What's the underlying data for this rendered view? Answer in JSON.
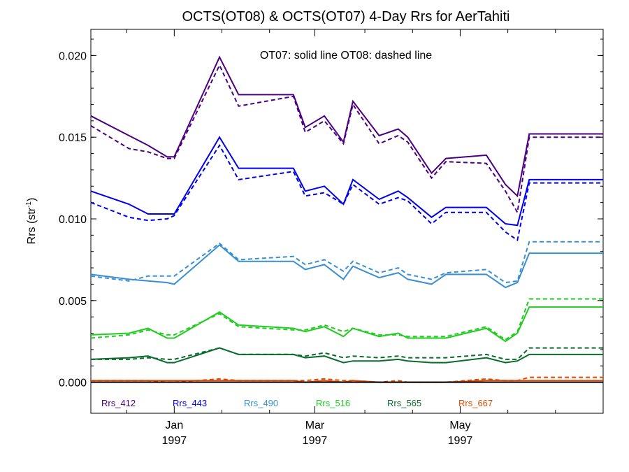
{
  "chart_data": {
    "type": "line",
    "title": "OCTS(OT08) & OCTS(OT07) 4-Day Rrs for AerTahiti",
    "subtitle": "OT07: solid line   OT08: dashed line",
    "ylabel_main": "Rrs (str",
    "ylabel_sup": "-1",
    "ylabel_close": ")",
    "xlabel": "",
    "ylim": [
      -0.0019,
      0.0216
    ],
    "y_ticks": [
      0.0,
      0.005,
      0.01,
      0.015,
      0.02
    ],
    "y_tick_labels": [
      "0.000",
      "0.005",
      "0.010",
      "0.015",
      "0.020"
    ],
    "x_ticks": [
      {
        "month": "Jan",
        "year": "1997",
        "day": 0
      },
      {
        "month": "Mar",
        "year": "1997",
        "day": 59
      },
      {
        "month": "May",
        "year": "1997",
        "day": 120
      }
    ],
    "xlim_days": [
      -35,
      180
    ],
    "grid": false,
    "legend_placement": "bottom, inside plot",
    "x": [
      -35,
      -19,
      -11,
      -3,
      0,
      19,
      27,
      50,
      55,
      63,
      71,
      75,
      86,
      94,
      98,
      108,
      114,
      131,
      139,
      144,
      149,
      154,
      162,
      180
    ],
    "series": [
      {
        "name": "Rrs_412",
        "color": "#4b0082",
        "ot07": [
          0.0163,
          0.0151,
          0.0145,
          0.0138,
          0.0138,
          0.0199,
          0.0176,
          0.0176,
          0.0156,
          0.0163,
          0.0147,
          0.0172,
          0.0151,
          0.0155,
          0.015,
          0.0128,
          0.0137,
          0.0139,
          0.0121,
          0.0114,
          0.0152,
          0.0152,
          0.0152,
          0.0152
        ],
        "ot08": [
          0.0157,
          0.0143,
          0.0141,
          0.0137,
          0.0137,
          0.0194,
          0.0169,
          0.0175,
          0.0153,
          0.016,
          0.0146,
          0.017,
          0.0146,
          0.0151,
          0.0147,
          0.0125,
          0.0135,
          0.0134,
          0.0117,
          0.0104,
          0.015,
          0.015,
          0.015,
          0.015
        ]
      },
      {
        "name": "Rrs_443",
        "color": "#0000ee",
        "ot07": [
          0.0117,
          0.0109,
          0.0103,
          0.0103,
          0.0103,
          0.015,
          0.0131,
          0.0131,
          0.0117,
          0.012,
          0.0109,
          0.0124,
          0.0112,
          0.0117,
          0.0113,
          0.0101,
          0.0107,
          0.0107,
          0.0097,
          0.0096,
          0.0124,
          0.0124,
          0.0124,
          0.0124
        ],
        "ot08": [
          0.011,
          0.0101,
          0.0099,
          0.01,
          0.0102,
          0.0145,
          0.0124,
          0.0129,
          0.0114,
          0.0116,
          0.0109,
          0.0121,
          0.0109,
          0.0113,
          0.0111,
          0.0097,
          0.0104,
          0.0104,
          0.0092,
          0.0087,
          0.0122,
          0.0122,
          0.0122,
          0.0122
        ]
      },
      {
        "name": "Rrs_490",
        "color": "#3a8fd0",
        "ot07": [
          0.0066,
          0.0063,
          0.0062,
          0.0061,
          0.006,
          0.0084,
          0.0074,
          0.0074,
          0.0069,
          0.0072,
          0.0063,
          0.0071,
          0.0064,
          0.0067,
          0.0063,
          0.006,
          0.0066,
          0.0066,
          0.0058,
          0.0061,
          0.0079,
          0.0079,
          0.0079,
          0.0079
        ],
        "ot08": [
          0.0065,
          0.0062,
          0.0065,
          0.0065,
          0.0065,
          0.0085,
          0.0075,
          0.0077,
          0.0072,
          0.0075,
          0.0068,
          0.0074,
          0.0067,
          0.007,
          0.0066,
          0.0063,
          0.0067,
          0.0069,
          0.0061,
          0.0062,
          0.0086,
          0.0086,
          0.0086,
          0.0086
        ]
      },
      {
        "name": "Rrs_516",
        "color": "#22cc22",
        "ot07": [
          0.0029,
          0.003,
          0.0033,
          0.0027,
          0.0027,
          0.0043,
          0.0035,
          0.0033,
          0.0031,
          0.0034,
          0.0028,
          0.0033,
          0.0028,
          0.003,
          0.0027,
          0.0027,
          0.0027,
          0.0033,
          0.0025,
          0.003,
          0.0046,
          0.0046,
          0.0046,
          0.0046
        ],
        "ot08": [
          0.0027,
          0.0029,
          0.0032,
          0.0029,
          0.0029,
          0.0042,
          0.0034,
          0.0032,
          0.0032,
          0.0035,
          0.0031,
          0.0033,
          0.0029,
          0.0029,
          0.0028,
          0.0028,
          0.0028,
          0.0034,
          0.0026,
          0.0031,
          0.0051,
          0.0051,
          0.0051,
          0.0051
        ]
      },
      {
        "name": "Rrs_565",
        "color": "#0b6b2c",
        "ot07": [
          0.0014,
          0.0015,
          0.0016,
          0.0012,
          0.0012,
          0.0021,
          0.0017,
          0.0017,
          0.0015,
          0.0016,
          0.0012,
          0.0013,
          0.0013,
          0.0014,
          0.0013,
          0.0012,
          0.0012,
          0.0015,
          0.0012,
          0.0013,
          0.0017,
          0.0017,
          0.0017,
          0.0017
        ],
        "ot08": [
          0.0014,
          0.0014,
          0.0015,
          0.0014,
          0.0014,
          0.0021,
          0.0017,
          0.0017,
          0.0016,
          0.0018,
          0.0015,
          0.0016,
          0.0015,
          0.0016,
          0.0015,
          0.0015,
          0.0015,
          0.0017,
          0.0014,
          0.0014,
          0.0021,
          0.0021,
          0.0021,
          0.0021
        ]
      },
      {
        "name": "Rrs_667",
        "color": "#e04a00",
        "ot07": [
          0.0001,
          0.0001,
          0.0001,
          0.0001,
          0.0001,
          0.0001,
          0.0001,
          0.0001,
          0.0,
          0.0001,
          0.0,
          0.0001,
          0.0,
          0.0,
          0.0,
          0.0,
          0.0,
          0.0001,
          0.0001,
          0.0001,
          0.0001,
          0.0001,
          0.0001,
          0.0001
        ],
        "ot08": [
          0.0001,
          0.0001,
          0.0001,
          0.0,
          0.0,
          0.0002,
          0.0001,
          0.0001,
          0.0001,
          0.0002,
          0.0001,
          0.0001,
          0.0,
          0.0001,
          0.0,
          0.0,
          0.0,
          0.0002,
          0.0001,
          0.0001,
          0.0003,
          0.0003,
          0.0003,
          0.0003
        ]
      }
    ]
  }
}
